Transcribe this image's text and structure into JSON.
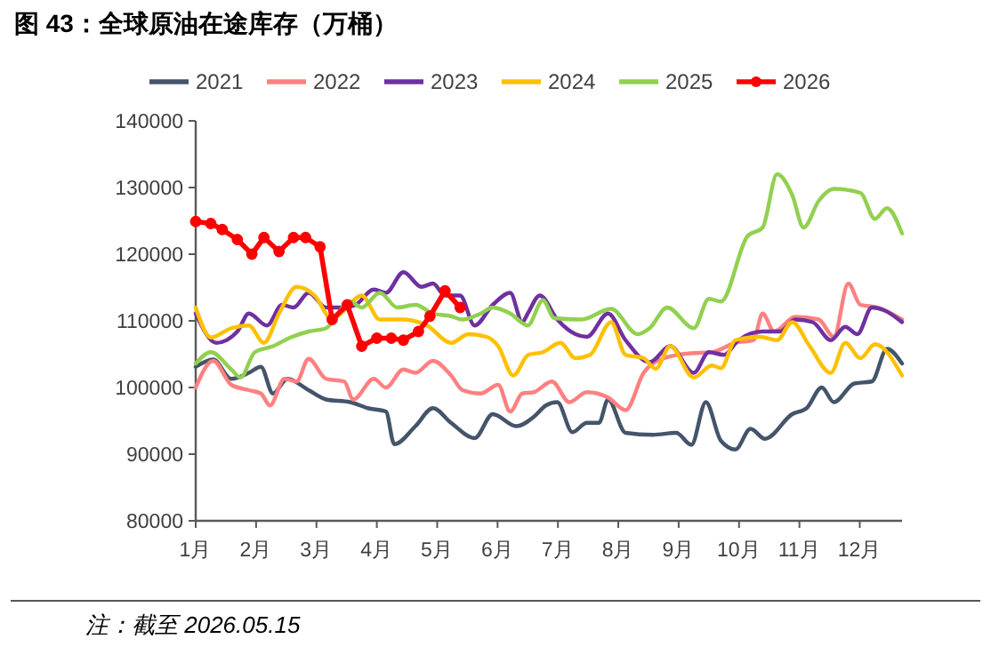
{
  "chart_data": {
    "type": "line",
    "title": "图 43：全球原油在途库存（万桶）",
    "annotations": [
      "注：截至 2026.05.15"
    ],
    "xlim": [
      1,
      12.7
    ],
    "xticks": [
      {
        "value": 1,
        "label": "1月"
      },
      {
        "value": 2,
        "label": "2月"
      },
      {
        "value": 3,
        "label": "3月"
      },
      {
        "value": 4,
        "label": "4月"
      },
      {
        "value": 5,
        "label": "5月"
      },
      {
        "value": 6,
        "label": "6月"
      },
      {
        "value": 7,
        "label": "7月"
      },
      {
        "value": 8,
        "label": "8月"
      },
      {
        "value": 9,
        "label": "9月"
      },
      {
        "value": 10,
        "label": "10月"
      },
      {
        "value": 11,
        "label": "11月"
      },
      {
        "value": 12,
        "label": "12月"
      }
    ],
    "ylim": [
      80000,
      140000
    ],
    "yticks": [
      80000,
      90000,
      100000,
      110000,
      120000,
      130000,
      140000
    ],
    "grid": false,
    "legend": "top",
    "marker": "none",
    "line_style": "solid",
    "series": [
      {
        "name": "2021",
        "color": "#44546a",
        "x": [
          1,
          1.29,
          1.59,
          1.88,
          2.08,
          2.28,
          2.52,
          2.87,
          3.16,
          3.56,
          3.85,
          4.15,
          4.29,
          4.64,
          4.93,
          5.23,
          5.62,
          5.92,
          6.31,
          6.6,
          6.8,
          6.99,
          7.24,
          7.48,
          7.68,
          7.83,
          8.12,
          8.57,
          8.96,
          9.21,
          9.45,
          9.7,
          9.94,
          10.19,
          10.43,
          10.88,
          11.12,
          11.37,
          11.57,
          11.91,
          12.2,
          12.45,
          12.7
        ],
        "values": [
          103100,
          104200,
          101300,
          102200,
          103100,
          99100,
          101300,
          99600,
          98200,
          97800,
          96900,
          96400,
          91500,
          94200,
          96900,
          94700,
          92400,
          96000,
          94200,
          95600,
          97300,
          97800,
          93300,
          94700,
          94700,
          98200,
          93200,
          92900,
          93200,
          91400,
          97800,
          92000,
          90700,
          93800,
          92300,
          96000,
          96900,
          100000,
          97800,
          100600,
          100900,
          105800,
          103600
        ]
      },
      {
        "name": "2022",
        "color": "#ff8080",
        "x": [
          1,
          1.29,
          1.59,
          1.88,
          2.08,
          2.23,
          2.47,
          2.67,
          2.87,
          3.16,
          3.46,
          3.61,
          3.95,
          4.15,
          4.44,
          4.64,
          4.93,
          5.23,
          5.42,
          5.72,
          6.01,
          6.21,
          6.41,
          6.6,
          6.9,
          7.19,
          7.48,
          7.83,
          8.12,
          8.42,
          8.76,
          9.16,
          9.55,
          9.94,
          10.24,
          10.39,
          10.58,
          10.93,
          11.32,
          11.57,
          11.81,
          12.01,
          12.3,
          12.7
        ],
        "values": [
          100000,
          104000,
          100400,
          99600,
          99100,
          97300,
          101300,
          100900,
          104300,
          101300,
          100900,
          98200,
          101300,
          100000,
          102700,
          102200,
          104000,
          101800,
          99600,
          99100,
          100400,
          96400,
          99100,
          99300,
          100900,
          97800,
          99300,
          98500,
          96600,
          102200,
          104400,
          105100,
          105300,
          106700,
          107100,
          111100,
          108400,
          110600,
          110200,
          107600,
          115600,
          112400,
          112000,
          110200
        ]
      },
      {
        "name": "2023",
        "color": "#7030a0",
        "x": [
          1,
          1.34,
          1.69,
          1.88,
          2.18,
          2.43,
          2.62,
          2.87,
          3.16,
          3.46,
          3.65,
          3.95,
          4.15,
          4.44,
          4.74,
          4.93,
          5.13,
          5.38,
          5.62,
          5.92,
          6.21,
          6.41,
          6.5,
          6.7,
          6.99,
          7.29,
          7.48,
          7.83,
          8.12,
          8.52,
          8.86,
          9.25,
          9.5,
          9.75,
          9.99,
          10.39,
          10.68,
          10.93,
          11.22,
          11.52,
          11.76,
          11.96,
          12.2,
          12.4,
          12.7
        ],
        "values": [
          111100,
          106700,
          108400,
          111100,
          109300,
          112400,
          112000,
          114200,
          112000,
          112000,
          112400,
          114700,
          114200,
          117300,
          115100,
          115600,
          113800,
          113800,
          109300,
          112400,
          114200,
          109800,
          111100,
          113800,
          110200,
          108000,
          107600,
          111100,
          107100,
          103800,
          106200,
          102200,
          105300,
          104900,
          107100,
          108400,
          108400,
          110200,
          109800,
          107100,
          109100,
          108000,
          112000,
          111600,
          109800
        ]
      },
      {
        "name": "2024",
        "color": "#ffc000",
        "x": [
          1,
          1.25,
          1.59,
          1.88,
          2.13,
          2.38,
          2.67,
          2.97,
          3.26,
          3.46,
          3.75,
          4.05,
          4.44,
          4.83,
          5.23,
          5.52,
          5.82,
          6.01,
          6.26,
          6.51,
          6.75,
          7.04,
          7.29,
          7.53,
          7.88,
          8.12,
          8.42,
          8.62,
          8.86,
          9.25,
          9.55,
          9.7,
          9.94,
          10.34,
          10.63,
          10.88,
          11.17,
          11.52,
          11.76,
          12.01,
          12.25,
          12.7
        ],
        "values": [
          112000,
          107500,
          108900,
          109300,
          106700,
          111100,
          115100,
          113800,
          110200,
          111600,
          113800,
          110200,
          110200,
          109300,
          106700,
          108000,
          107600,
          106200,
          101800,
          104900,
          105300,
          106700,
          104400,
          104900,
          109800,
          104900,
          104400,
          102800,
          106200,
          101500,
          103300,
          102900,
          107100,
          107600,
          107100,
          109800,
          106200,
          102200,
          106700,
          104400,
          106500,
          101800
        ]
      },
      {
        "name": "2025",
        "color": "#92d050",
        "x": [
          1,
          1.25,
          1.59,
          1.74,
          1.98,
          2.28,
          2.57,
          2.87,
          3.16,
          3.56,
          3.75,
          4.05,
          4.34,
          4.64,
          4.93,
          5.23,
          5.42,
          5.72,
          5.92,
          6.21,
          6.5,
          6.75,
          6.94,
          7.39,
          7.88,
          8.32,
          8.52,
          8.81,
          9.25,
          9.5,
          9.7,
          10.14,
          10.39,
          10.63,
          10.88,
          11.07,
          11.32,
          11.57,
          12.01,
          12.25,
          12.45,
          12.7
        ],
        "values": [
          103600,
          105300,
          102700,
          101500,
          105300,
          106200,
          107500,
          108400,
          108900,
          112900,
          112000,
          114200,
          112000,
          112400,
          111100,
          110700,
          110200,
          111100,
          112000,
          111100,
          109300,
          113100,
          110400,
          110200,
          111800,
          108000,
          108900,
          112000,
          108900,
          113300,
          112900,
          122700,
          124000,
          132000,
          128900,
          124000,
          128000,
          129800,
          129200,
          125300,
          126900,
          123100
        ]
      },
      {
        "name": "2026",
        "color": "#ff0000",
        "marker": "circle",
        "x": [
          1,
          1.25,
          1.44,
          1.69,
          1.93,
          2.13,
          2.38,
          2.62,
          2.82,
          3.06,
          3.26,
          3.51,
          3.75,
          4.0,
          4.24,
          4.44,
          4.69,
          4.88,
          5.13,
          5.38
        ],
        "values": [
          124900,
          124600,
          123700,
          122200,
          120000,
          122500,
          120400,
          122500,
          122500,
          121100,
          110200,
          112400,
          106200,
          107400,
          107400,
          107100,
          108400,
          110700,
          114500,
          112000
        ]
      }
    ]
  }
}
